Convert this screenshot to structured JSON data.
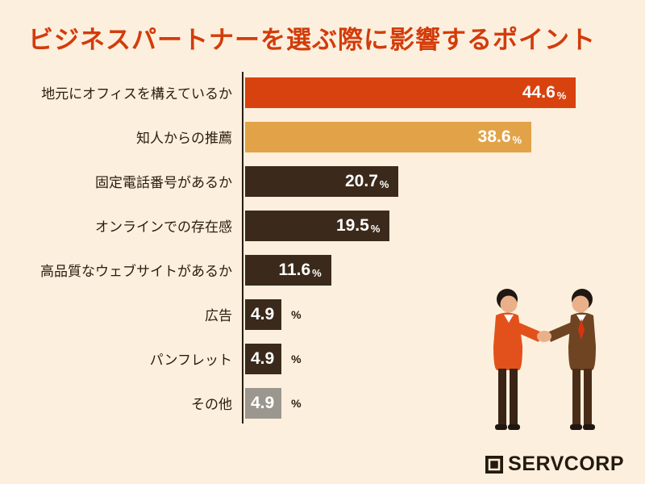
{
  "title": "ビジネスパートナーを選ぶ際に影響するポイント",
  "palette": {
    "bg": "#fdefdd",
    "title-color": "#d23c0b",
    "text-color": "#2b1c0e",
    "axis-color": "#2b1c0e",
    "logo-color": "#241a0e"
  },
  "chart_data": {
    "type": "bar",
    "orientation": "horizontal",
    "title": "ビジネスパートナーを選ぶ際に影響するポイント",
    "unit": "%",
    "categories": [
      "地元にオフィスを構えているか",
      "知人からの推薦",
      "固定電話番号があるか",
      "オンラインでの存在感",
      "高品質なウェブサイトがあるか",
      "広告",
      "パンフレット",
      "その他"
    ],
    "values": [
      44.6,
      38.6,
      20.7,
      19.5,
      11.6,
      4.9,
      4.9,
      4.9
    ],
    "value_labels": [
      "44.6",
      "38.6",
      "20.7",
      "19.5",
      "11.6",
      "4.9",
      "4.9",
      "4.9"
    ],
    "bar_colors": [
      "#d8420e",
      "#e2a348",
      "#3b2a1b",
      "#3b2a1b",
      "#3b2a1b",
      "#3b2a1b",
      "#3b2a1b",
      "#9c978e"
    ],
    "pct_outside": [
      false,
      false,
      false,
      false,
      false,
      true,
      true,
      true
    ],
    "xlim": [
      0,
      50
    ],
    "grid": false,
    "legend": "none"
  },
  "logo": {
    "text": "SERVCORP"
  }
}
